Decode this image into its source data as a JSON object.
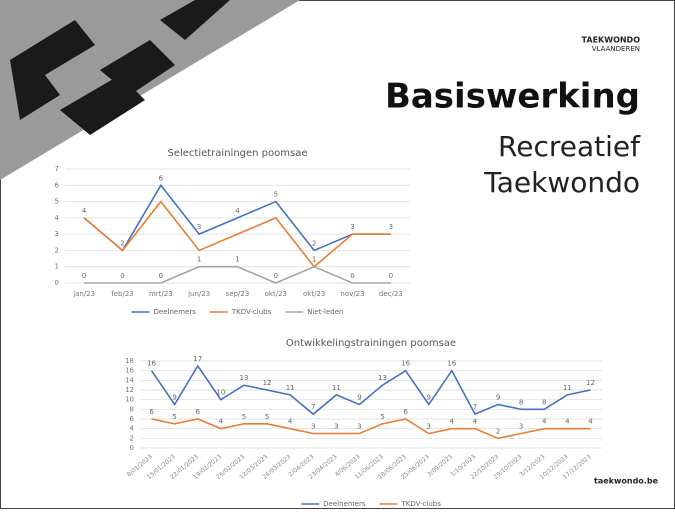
{
  "slide": {
    "logo_text": [
      "TAEKWONDO",
      "VLAANDEREN"
    ],
    "title": "Basiswerking",
    "subtitle_lines": [
      "Recreatief",
      "Taekwondo"
    ],
    "footer": "taekwondo.be"
  },
  "chart_data": [
    {
      "type": "line",
      "title": "Selectietrainingen poomsae",
      "categories": [
        "jan/23",
        "feb/23",
        "mrt/23",
        "jun/23",
        "sep/23",
        "okt/23",
        "okt/23",
        "nov/23",
        "dec/23"
      ],
      "series": [
        {
          "name": "Deelnemers",
          "color": "#4472c4",
          "data_labels": true,
          "values": [
            4,
            2,
            6,
            3,
            4,
            5,
            2,
            3,
            3
          ]
        },
        {
          "name": "TKDV-clubs",
          "color": "#ed7d31",
          "data_labels": false,
          "values": [
            4,
            2,
            5,
            2,
            3,
            4,
            1,
            3,
            3
          ]
        },
        {
          "name": "Niet-leden",
          "color": "#a5a5a5",
          "data_labels": true,
          "values": [
            0,
            0,
            0,
            1,
            1,
            0,
            1,
            0,
            0
          ]
        }
      ],
      "ylim": [
        0,
        7
      ],
      "yticks": [
        0,
        1,
        2,
        3,
        4,
        5,
        6,
        7
      ],
      "grid": true,
      "legend": "bottom"
    },
    {
      "type": "line",
      "title": "Ontwikkelingstrainingen poomsae",
      "categories": [
        "8/01/2023",
        "15/01/2023",
        "22/01/2023",
        "19/02/2023",
        "26/02/2023",
        "12/03/2023",
        "26/03/2023",
        "2/04/2023",
        "23/04/2023",
        "4/06/2023",
        "11/06/2023",
        "18/06/2023",
        "25/06/2023",
        "3/09/2023",
        "1/10/2023",
        "22/10/2023",
        "29/10/2023",
        "3/12/2023",
        "10/12/2023",
        "17/12/2023"
      ],
      "series": [
        {
          "name": "Deelnemers",
          "color": "#4472c4",
          "data_labels": true,
          "values": [
            16,
            9,
            17,
            10,
            13,
            12,
            11,
            7,
            11,
            9,
            13,
            16,
            9,
            16,
            7,
            9,
            8,
            8,
            11,
            12
          ]
        },
        {
          "name": "TKDV-clubs",
          "color": "#ed7d31",
          "data_labels": true,
          "values": [
            6,
            5,
            6,
            4,
            5,
            5,
            4,
            3,
            3,
            3,
            5,
            6,
            3,
            4,
            4,
            2,
            3,
            4,
            4,
            4
          ]
        }
      ],
      "ylim": [
        0,
        18
      ],
      "yticks": [
        0,
        2,
        4,
        6,
        8,
        10,
        12,
        14,
        16,
        18
      ],
      "grid": true,
      "legend": "bottom"
    }
  ]
}
